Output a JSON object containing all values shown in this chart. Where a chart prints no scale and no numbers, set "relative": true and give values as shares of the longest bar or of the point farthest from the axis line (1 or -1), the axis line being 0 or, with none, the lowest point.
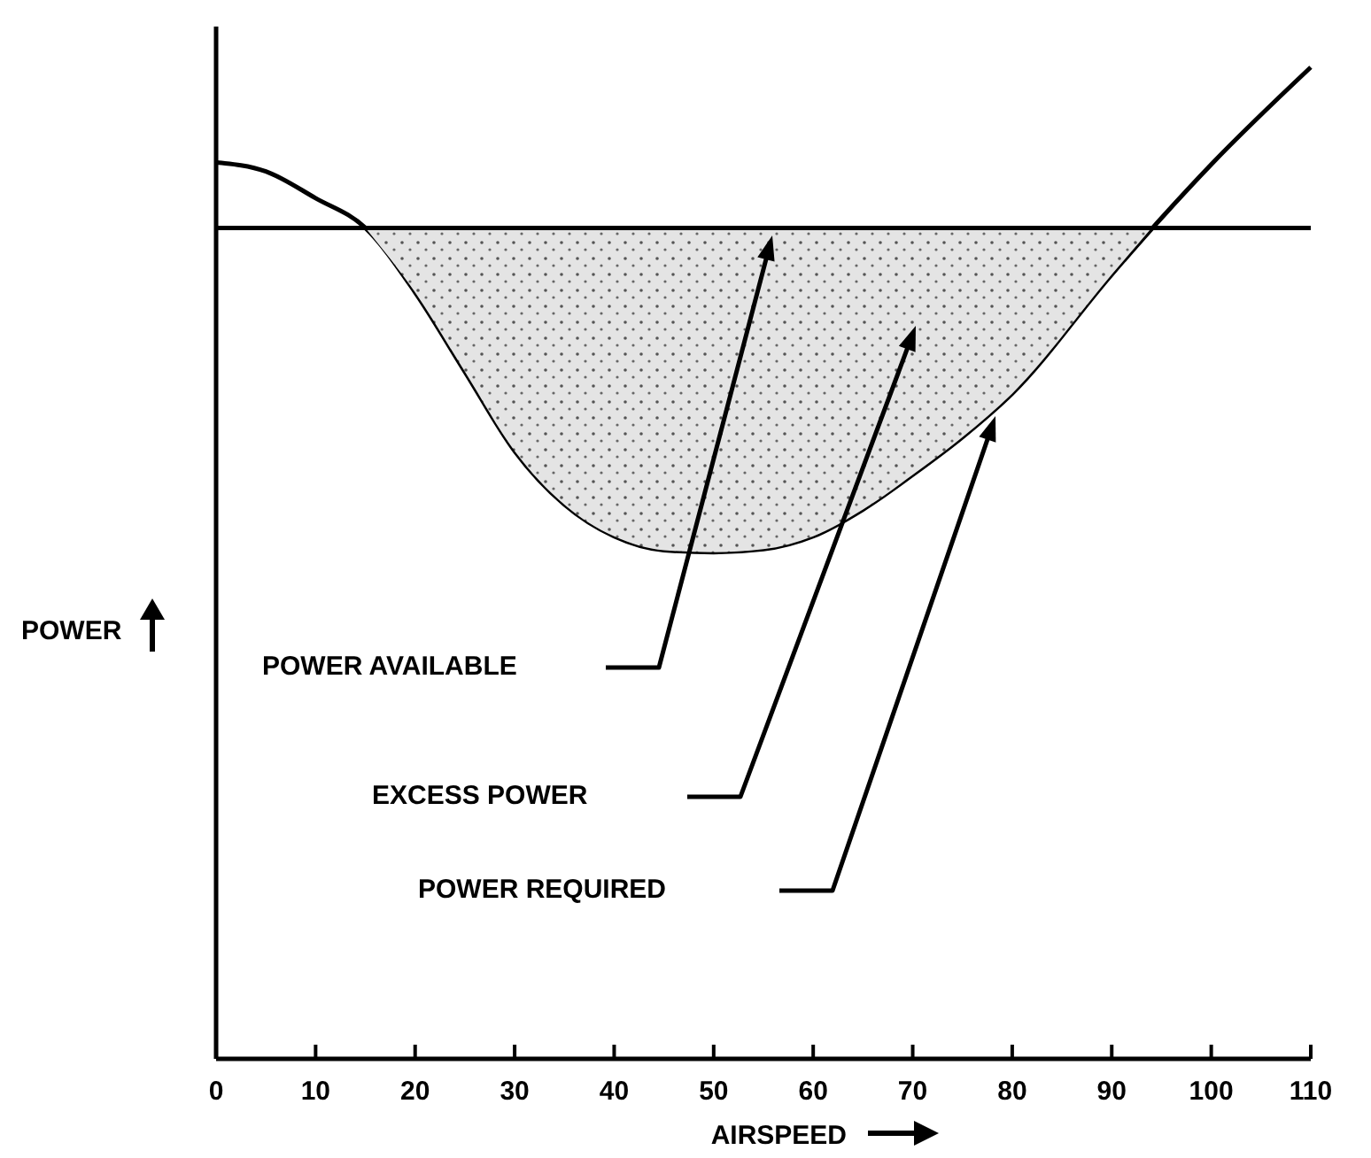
{
  "chart_data": {
    "type": "line",
    "relative": true,
    "xlabel": "AIRSPEED",
    "ylabel": "POWER",
    "xlim": [
      0,
      110
    ],
    "xticks": [
      0,
      10,
      20,
      30,
      40,
      50,
      60,
      70,
      80,
      90,
      100,
      110
    ],
    "grid": false,
    "marker": "none",
    "line_style": "solid",
    "series": [
      {
        "color": "#000000",
        "x": [
          0,
          5,
          10,
          15,
          20,
          25,
          30,
          35,
          40,
          45,
          50,
          55,
          60,
          65,
          70,
          75,
          80,
          90,
          95,
          100,
          110
        ],
        "values": [
          0.904,
          0.895,
          0.868,
          0.838,
          0.773,
          0.693,
          0.613,
          0.559,
          0.527,
          0.513,
          0.511,
          0.514,
          0.527,
          0.554,
          0.589,
          0.627,
          0.671,
          0.791,
          0.848,
          0.902,
          1
        ]
      },
      {
        "color": "#000000",
        "x": [
          0,
          15,
          20,
          25,
          30,
          35,
          40,
          45,
          50,
          55,
          60,
          65,
          70,
          75,
          80,
          90,
          94,
          110
        ],
        "values": [
          0.838,
          0.838,
          0.838,
          0.838,
          0.838,
          0.838,
          0.838,
          0.838,
          0.838,
          0.838,
          0.838,
          0.838,
          0.838,
          0.838,
          0.838,
          0.838,
          0.838,
          0.838
        ],
        "lower": [
          null,
          0.838,
          0.773,
          0.693,
          0.613,
          0.559,
          0.527,
          0.513,
          0.511,
          0.514,
          0.527,
          0.554,
          0.589,
          0.627,
          0.671,
          0.791,
          0.838,
          null
        ],
        "upper": [
          null,
          0.838,
          0.838,
          0.838,
          0.838,
          0.838,
          0.838,
          0.838,
          0.838,
          0.838,
          0.838,
          0.838,
          0.838,
          0.838,
          0.838,
          0.838,
          0.838,
          null
        ]
      }
    ],
    "annotations": [
      "POWER AVAILABLE",
      "EXCESS POWER",
      "POWER REQUIRED"
    ]
  }
}
